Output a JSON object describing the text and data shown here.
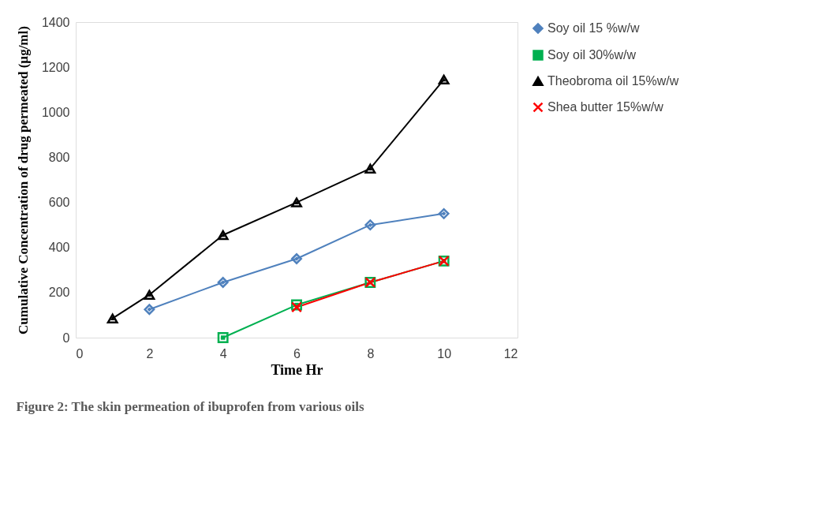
{
  "chart_data": {
    "type": "line",
    "xlabel": "Time Hr",
    "ylabel": "Cumulative Concentration of drug permeated (µg/ml)",
    "annotations": [
      "Figure 2: The skin permeation of ibuprofen from various oils"
    ],
    "xlim": [
      0,
      12
    ],
    "xticks": [
      0,
      2,
      4,
      6,
      8,
      10,
      12
    ],
    "ylim": [
      0,
      1400
    ],
    "yticks": [
      0,
      200,
      400,
      600,
      800,
      1000,
      1200,
      1400
    ],
    "grid": false,
    "legend": "top right",
    "line_style": "solid",
    "series": [
      {
        "name": "Soy oil 15 %w/w",
        "color": "#4f81bd",
        "marker": "diamond",
        "x": [
          2,
          4,
          6,
          8,
          10
        ],
        "values": [
          125,
          245,
          350,
          500,
          550
        ]
      },
      {
        "name": "Soy oil 30%w/w",
        "color": "#00b050",
        "marker": "square",
        "x": [
          4,
          6,
          8,
          10
        ],
        "values": [
          0,
          145,
          245,
          340
        ]
      },
      {
        "name": "Theobroma oil 15%w/w",
        "color": "#000000",
        "marker": "triangle",
        "x": [
          1,
          2,
          4,
          6,
          8,
          10
        ],
        "values": [
          85,
          190,
          455,
          600,
          750,
          1145
        ]
      },
      {
        "name": "Shea butter 15%w/w",
        "color": "#ff0000",
        "marker": "cross",
        "x": [
          6,
          8,
          10
        ],
        "values": [
          135,
          245,
          340
        ]
      }
    ]
  }
}
